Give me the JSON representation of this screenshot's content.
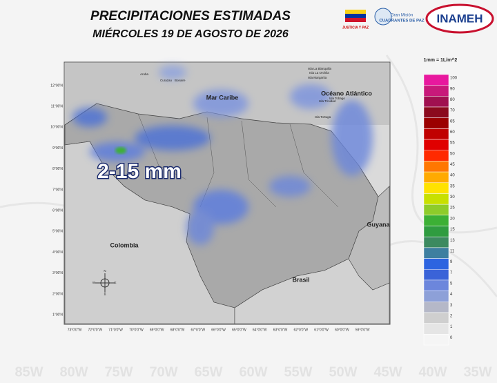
{
  "header": {
    "title": "PRECIPITACIONES ESTIMADAS",
    "subtitle": "MIÉRCOLES 19 DE AGOSTO DE 2026"
  },
  "logos": {
    "ministry": "JUSTICIA Y PAZ",
    "mission_top": "Gran Misión",
    "mission": "CUADRANTES DE PAZ",
    "institute": "INAMEH"
  },
  "legend": {
    "unit": "1mm = 1L/m^2",
    "items": [
      {
        "label": 100,
        "color": "#e8189e"
      },
      {
        "label": 90,
        "color": "#c8197a"
      },
      {
        "label": 80,
        "color": "#a01050"
      },
      {
        "label": 70,
        "color": "#8b0a1e"
      },
      {
        "label": 65,
        "color": "#9b0000"
      },
      {
        "label": 60,
        "color": "#c00000"
      },
      {
        "label": 55,
        "color": "#e00000"
      },
      {
        "label": 50,
        "color": "#ff2a00"
      },
      {
        "label": 45,
        "color": "#ff7700"
      },
      {
        "label": 40,
        "color": "#ffaa00"
      },
      {
        "label": 35,
        "color": "#ffe200"
      },
      {
        "label": 30,
        "color": "#c8e000"
      },
      {
        "label": 25,
        "color": "#8ecc2a"
      },
      {
        "label": 20,
        "color": "#3cb035"
      },
      {
        "label": 15,
        "color": "#2f9c40"
      },
      {
        "label": 13,
        "color": "#3c8a60"
      },
      {
        "label": 11,
        "color": "#3e7fa0"
      },
      {
        "label": 9,
        "color": "#2d64e0"
      },
      {
        "label": 7,
        "color": "#3a63d8"
      },
      {
        "label": 5,
        "color": "#6c86dc"
      },
      {
        "label": 4,
        "color": "#8da0d8"
      },
      {
        "label": 3,
        "color": "#b5b8c8"
      },
      {
        "label": 2,
        "color": "#cfcfcf"
      },
      {
        "label": 1,
        "color": "#e5e5e5"
      },
      {
        "label": 0,
        "color": "#f5f5f5"
      }
    ]
  },
  "map": {
    "annotation": "2-15 mm",
    "places": [
      "Mar Caribe",
      "Océano Atlántico",
      "Colombia",
      "Brasil",
      "Guyana"
    ],
    "small_places": [
      "Aruba",
      "Curazao",
      "Bonaire",
      "Isla La Blanquilla",
      "Isla La Orchila",
      "Isla Margarita",
      "Isla Tortuga",
      "Isla Trinidad",
      "Isla Tobago"
    ],
    "lat_labels": [
      "12°00'N",
      "11°00'N",
      "10°00'N",
      "9°00'N",
      "8°00'N",
      "7°00'N",
      "6°00'N",
      "5°00'N",
      "4°00'N",
      "3°00'N",
      "2°00'N",
      "1°00'N"
    ],
    "lon_labels": [
      "73°0'0\"W",
      "72°0'0\"W",
      "71°0'0\"W",
      "70°0'0\"W",
      "69°0'0\"W",
      "68°0'0\"W",
      "67°0'0\"W",
      "66°0'0\"W",
      "65°0'0\"W",
      "64°0'0\"W",
      "63°0'0\"W",
      "62°0'0\"W",
      "61°0'0\"W",
      "60°0'0\"W",
      "59°0'0\"W"
    ],
    "compass": [
      "N",
      "S",
      "E",
      "W"
    ]
  },
  "background_lon_labels": [
    "85W",
    "80W",
    "75W",
    "70W",
    "65W",
    "60W",
    "55W",
    "50W",
    "45W",
    "40W",
    "35W"
  ]
}
